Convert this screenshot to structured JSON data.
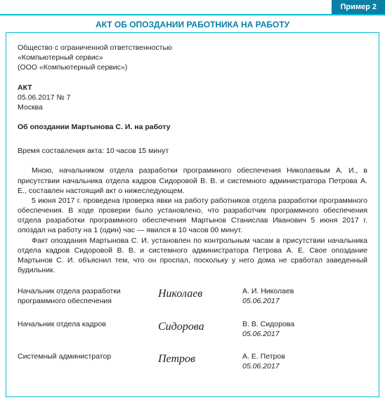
{
  "header": {
    "example_label": "Пример  2",
    "title": "АКТ ОБ ОПОЗДАНИИ РАБОТНИКА НА РАБОТУ"
  },
  "org": {
    "line1": "Общество с ограниченной ответственностью",
    "line2": "«Компьютерный сервис»",
    "line3": "(ООО «Компьютерный сервис»)"
  },
  "akt": {
    "label": "АКТ",
    "date_no": "05.06.2017 № 7",
    "city": "Москва"
  },
  "subject": "Об опоздании Мартынова С. И. на работу",
  "time_line": "Время составления акта: 10 часов 15 минут",
  "body": {
    "p1": "Мною, начальником отдела разработки программного обеспечения Николаевым А. И., в присутствии начальника отдела кадров Сидоровой В. В. и системного администратора Петрова А. Е., составлен настоящий акт о нижеследующем.",
    "p2": "5 июня 2017 г. проведена проверка явки на работу работников отдела разработки программного обеспечения. В ходе проверки было установлено, что разработчик программного обеспечения отдела разработки программного обеспечения Мартынов Станислав Иванович 5 июня 2017 г. опоздал на работу на 1 (один) час — явился в 10 часов 00 минут.",
    "p3": "Факт опоздания Мартынова С. И. установлен по контрольным часам в присутствии начальника отдела кадров Сидоровой В. В. и системного администратора Петрова А. Е. Свое опоздание Мартынов С. И. объяснил тем, что он проспал, поскольку у него дома не сработал заведенный будильник."
  },
  "signatures": [
    {
      "role_l1": "Начальник отдела разработки",
      "role_l2": "программного обеспечения",
      "sign": "Николаев",
      "name": "А. И. Николаев",
      "date": "05.06.2017"
    },
    {
      "role_l1": "Начальник отдела кадров",
      "role_l2": "",
      "sign": "Сидорова",
      "name": "В. В. Сидорова",
      "date": "05.06.2017"
    },
    {
      "role_l1": "Системный администратор",
      "role_l2": "",
      "sign": "Петров",
      "name": "А. Е. Петров",
      "date": "05.06.2017"
    }
  ]
}
